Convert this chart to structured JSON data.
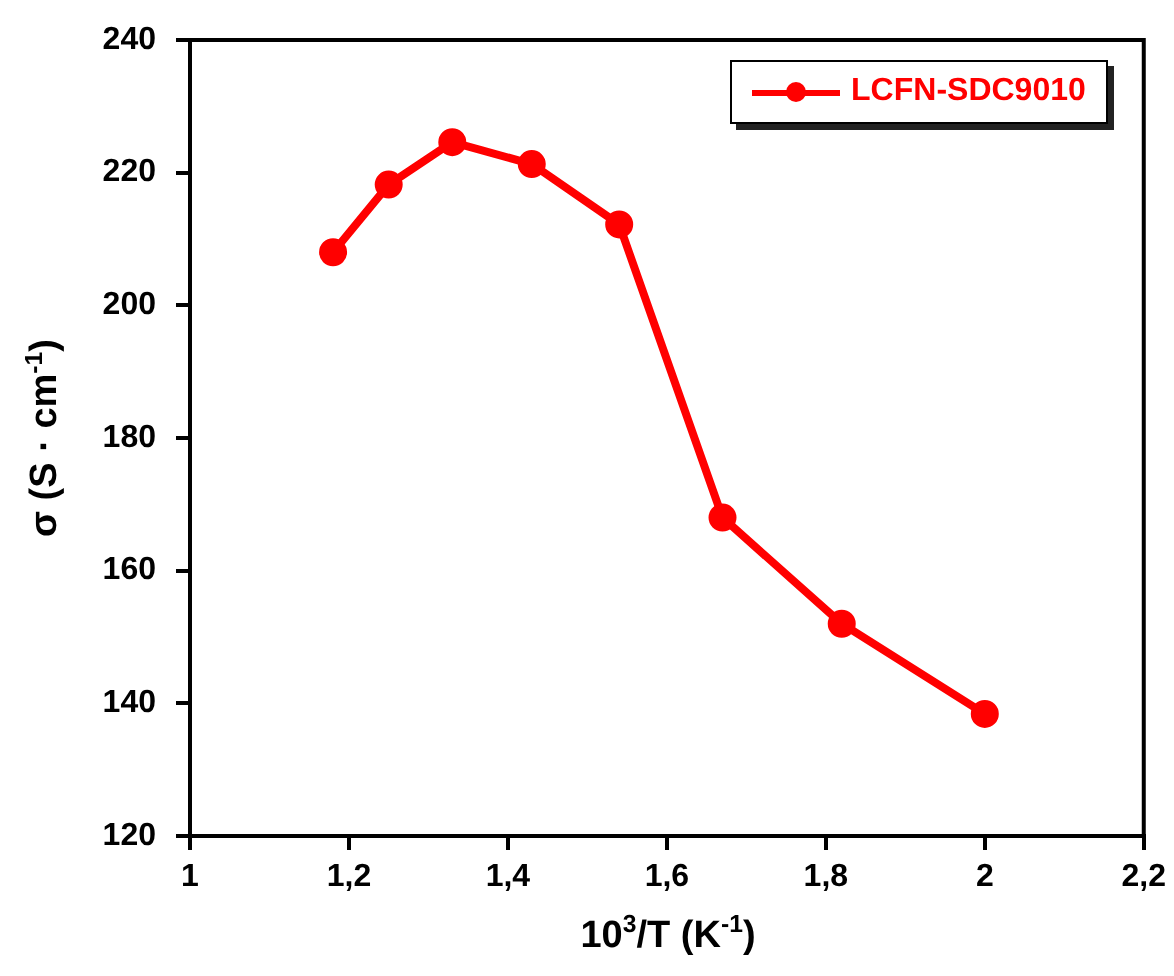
{
  "chart_data": {
    "type": "line",
    "xlabel": "10$^{3}$/T (K$^{-1}$)",
    "ylabel": "σ (S · cm$^{-1}$)",
    "x": [
      1.18,
      1.25,
      1.33,
      1.43,
      1.54,
      1.67,
      1.82,
      2.0
    ],
    "series": [
      {
        "name": "LCFN-SDC9010",
        "color": "#ff0000",
        "values": [
          208,
          218.2,
          224.6,
          221.3,
          212.2,
          168,
          152,
          138.4
        ]
      }
    ],
    "xlim": [
      1,
      2.2
    ],
    "xticks": [
      1,
      {
        "value": 1.2,
        "label": "1,2"
      },
      {
        "value": 1.4,
        "label": "1,4"
      },
      {
        "value": 1.6,
        "label": "1,6"
      },
      {
        "value": 1.8,
        "label": "1,8"
      },
      2,
      {
        "value": 2.2,
        "label": "2,2"
      }
    ],
    "ylim": [
      120,
      240
    ],
    "yticks": [
      120,
      140,
      160,
      180,
      200,
      220,
      240
    ],
    "grid": false,
    "legend": "top right",
    "marker": "circle",
    "line_style": "solid"
  }
}
